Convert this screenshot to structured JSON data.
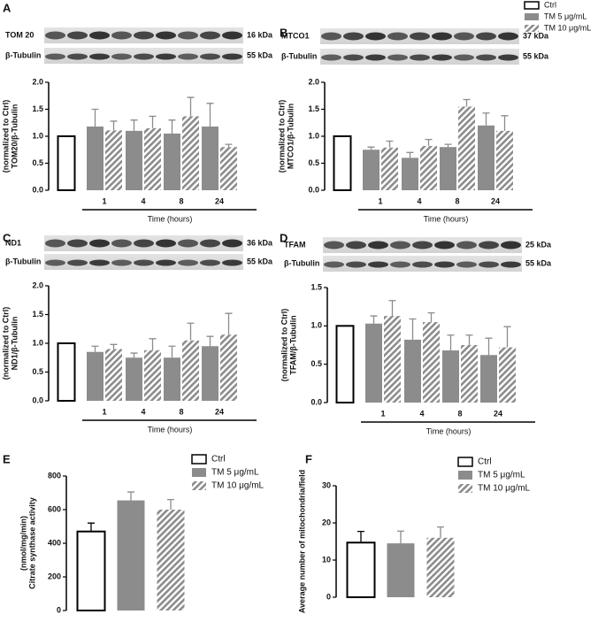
{
  "chart_data": [
    {
      "type": "bar",
      "panel": "A",
      "blots": [
        {
          "label": "TOM 20",
          "size": "16 kDa"
        },
        {
          "label": "β-Tubulin",
          "size": "55 kDa"
        }
      ],
      "ylabel": [
        "TOM20/β-Tubulin",
        "(normalized to Ctrl)"
      ],
      "xlabel": "Time (hours)",
      "categories": [
        null,
        "1",
        "4",
        "8",
        "24"
      ],
      "ylim": [
        0,
        2
      ],
      "yticks": [
        {
          "value": 0,
          "label": "0.0"
        },
        {
          "value": 0.5,
          "label": "0.5"
        },
        {
          "value": 1,
          "label": "1.0"
        },
        {
          "value": 1.5,
          "label": "1.5"
        },
        {
          "value": 2,
          "label": "2.0"
        }
      ],
      "series": [
        {
          "name": "Ctrl",
          "color": "#ffffff",
          "fill": "hollow",
          "values": [
            1,
            null,
            null,
            null,
            null
          ],
          "errors": [
            null,
            null,
            null,
            null,
            null
          ]
        },
        {
          "name": "TM 5 μg/mL",
          "color": "#8c8c8c",
          "fill": "solid",
          "values": [
            null,
            1.18,
            1.1,
            1.05,
            1.18
          ],
          "errors": [
            null,
            0.32,
            0.2,
            0.25,
            0.43
          ]
        },
        {
          "name": "TM 10 μg/mL",
          "color": "#8c8c8c",
          "fill": "hatched",
          "values": [
            null,
            1.11,
            1.15,
            1.37,
            0.8
          ],
          "errors": [
            null,
            0.17,
            0.22,
            0.35,
            0.05
          ]
        }
      ]
    },
    {
      "type": "bar",
      "panel": "B",
      "blots": [
        {
          "label": "MTCO1",
          "size": "37 kDa"
        },
        {
          "label": "β-Tubulin",
          "size": "55 kDa"
        }
      ],
      "ylabel": [
        "MTCO1/β-Tubulin",
        "(normalized to Ctrl)"
      ],
      "xlabel": "Time (hours)",
      "categories": [
        null,
        "1",
        "4",
        "8",
        "24"
      ],
      "ylim": [
        0,
        2
      ],
      "yticks": [
        {
          "value": 0,
          "label": "0.0"
        },
        {
          "value": 0.5,
          "label": "0.5"
        },
        {
          "value": 1,
          "label": "1.0"
        },
        {
          "value": 1.5,
          "label": "1.5"
        },
        {
          "value": 2,
          "label": "2.0"
        }
      ],
      "series": [
        {
          "color": "#ffffff",
          "fill": "hollow",
          "values": [
            1,
            null,
            null,
            null,
            null
          ],
          "errors": [
            null,
            null,
            null,
            null,
            null
          ]
        },
        {
          "color": "#8c8c8c",
          "fill": "solid",
          "values": [
            null,
            0.75,
            0.6,
            0.8,
            1.2
          ],
          "errors": [
            null,
            0.05,
            0.1,
            0.05,
            0.23
          ]
        },
        {
          "color": "#8c8c8c",
          "fill": "hatched",
          "values": [
            null,
            0.79,
            0.82,
            1.55,
            1.1
          ],
          "errors": [
            null,
            0.12,
            0.12,
            0.13,
            0.28
          ]
        }
      ]
    },
    {
      "type": "bar",
      "panel": "C",
      "blots": [
        {
          "label": "ND1",
          "size": "36 kDa"
        },
        {
          "label": "β-Tubulin",
          "size": "55 kDa"
        }
      ],
      "ylabel": [
        "ND1/β-Tubulin",
        "(normalized to Ctrl)"
      ],
      "xlabel": "Time (hours)",
      "categories": [
        null,
        "1",
        "4",
        "8",
        "24"
      ],
      "ylim": [
        0,
        2
      ],
      "yticks": [
        {
          "value": 0,
          "label": "0.0"
        },
        {
          "value": 0.5,
          "label": "0.5"
        },
        {
          "value": 1,
          "label": "1.0"
        },
        {
          "value": 1.5,
          "label": "1.5"
        },
        {
          "value": 2,
          "label": "2.0"
        }
      ],
      "series": [
        {
          "color": "#ffffff",
          "fill": "hollow",
          "values": [
            1,
            null,
            null,
            null,
            null
          ],
          "errors": [
            null,
            null,
            null,
            null,
            null
          ]
        },
        {
          "color": "#8c8c8c",
          "fill": "solid",
          "values": [
            null,
            0.85,
            0.75,
            0.75,
            0.95
          ],
          "errors": [
            null,
            0.1,
            0.08,
            0.2,
            0.17
          ]
        },
        {
          "color": "#8c8c8c",
          "fill": "hatched",
          "values": [
            null,
            0.9,
            0.88,
            1.05,
            1.15
          ],
          "errors": [
            null,
            0.08,
            0.2,
            0.3,
            0.37
          ]
        }
      ]
    },
    {
      "type": "bar",
      "panel": "D",
      "blots": [
        {
          "label": "TFAM",
          "size": "25 kDa"
        },
        {
          "label": "β-Tubulin",
          "size": "55 kDa"
        }
      ],
      "ylabel": [
        "TFAM/β-Tubulin",
        "(normalized to Ctrl)"
      ],
      "xlabel": "Time (hours)",
      "categories": [
        null,
        "1",
        "4",
        "8",
        "24"
      ],
      "ylim": [
        0,
        1.5
      ],
      "yticks": [
        {
          "value": 0,
          "label": "0.0"
        },
        {
          "value": 0.5,
          "label": "0.5"
        },
        {
          "value": 1,
          "label": "1.0"
        },
        {
          "value": 1.5,
          "label": "1.5"
        }
      ],
      "series": [
        {
          "color": "#ffffff",
          "fill": "hollow",
          "values": [
            1,
            null,
            null,
            null,
            null
          ],
          "errors": [
            null,
            null,
            null,
            null,
            null
          ]
        },
        {
          "color": "#8c8c8c",
          "fill": "solid",
          "values": [
            null,
            1.03,
            0.82,
            0.68,
            0.62
          ],
          "errors": [
            null,
            0.1,
            0.27,
            0.2,
            0.22
          ]
        },
        {
          "color": "#8c8c8c",
          "fill": "hatched",
          "values": [
            null,
            1.13,
            1.05,
            0.75,
            0.72
          ],
          "errors": [
            null,
            0.2,
            0.12,
            0.13,
            0.27
          ]
        }
      ]
    },
    {
      "type": "bar",
      "panel": "E",
      "ylabel": [
        "Citrate synthase activity",
        "(nmol/mg/min)"
      ],
      "ylim": [
        0,
        800
      ],
      "yticks": [
        0,
        200,
        400,
        600,
        800
      ],
      "series": [
        {
          "name": "Ctrl",
          "color": "#ffffff",
          "fill": "hollow",
          "values": [
            470
          ],
          "errors": [
            50
          ]
        },
        {
          "name": "TM 5 μg/mL",
          "color": "#8c8c8c",
          "fill": "solid",
          "values": [
            655
          ],
          "errors": [
            50
          ]
        },
        {
          "name": "TM 10 μg/mL",
          "color": "#8c8c8c",
          "fill": "hatched",
          "values": [
            600
          ],
          "errors": [
            60
          ]
        }
      ]
    },
    {
      "type": "bar",
      "panel": "F",
      "ylabel": [
        "Average number of mitochondria/field"
      ],
      "ylim": [
        0,
        30
      ],
      "yticks": [
        0,
        10,
        20,
        30
      ],
      "series": [
        {
          "name": "Ctrl",
          "color": "#ffffff",
          "fill": "hollow",
          "values": [
            14.7
          ],
          "errors": [
            3
          ]
        },
        {
          "name": "TM 5 μg/mL",
          "color": "#8c8c8c",
          "fill": "solid",
          "values": [
            14.5
          ],
          "errors": [
            3.3
          ]
        },
        {
          "name": "TM 10 μg/mL",
          "color": "#8c8c8c",
          "fill": "hatched",
          "values": [
            16
          ],
          "errors": [
            2.9
          ]
        }
      ]
    }
  ]
}
